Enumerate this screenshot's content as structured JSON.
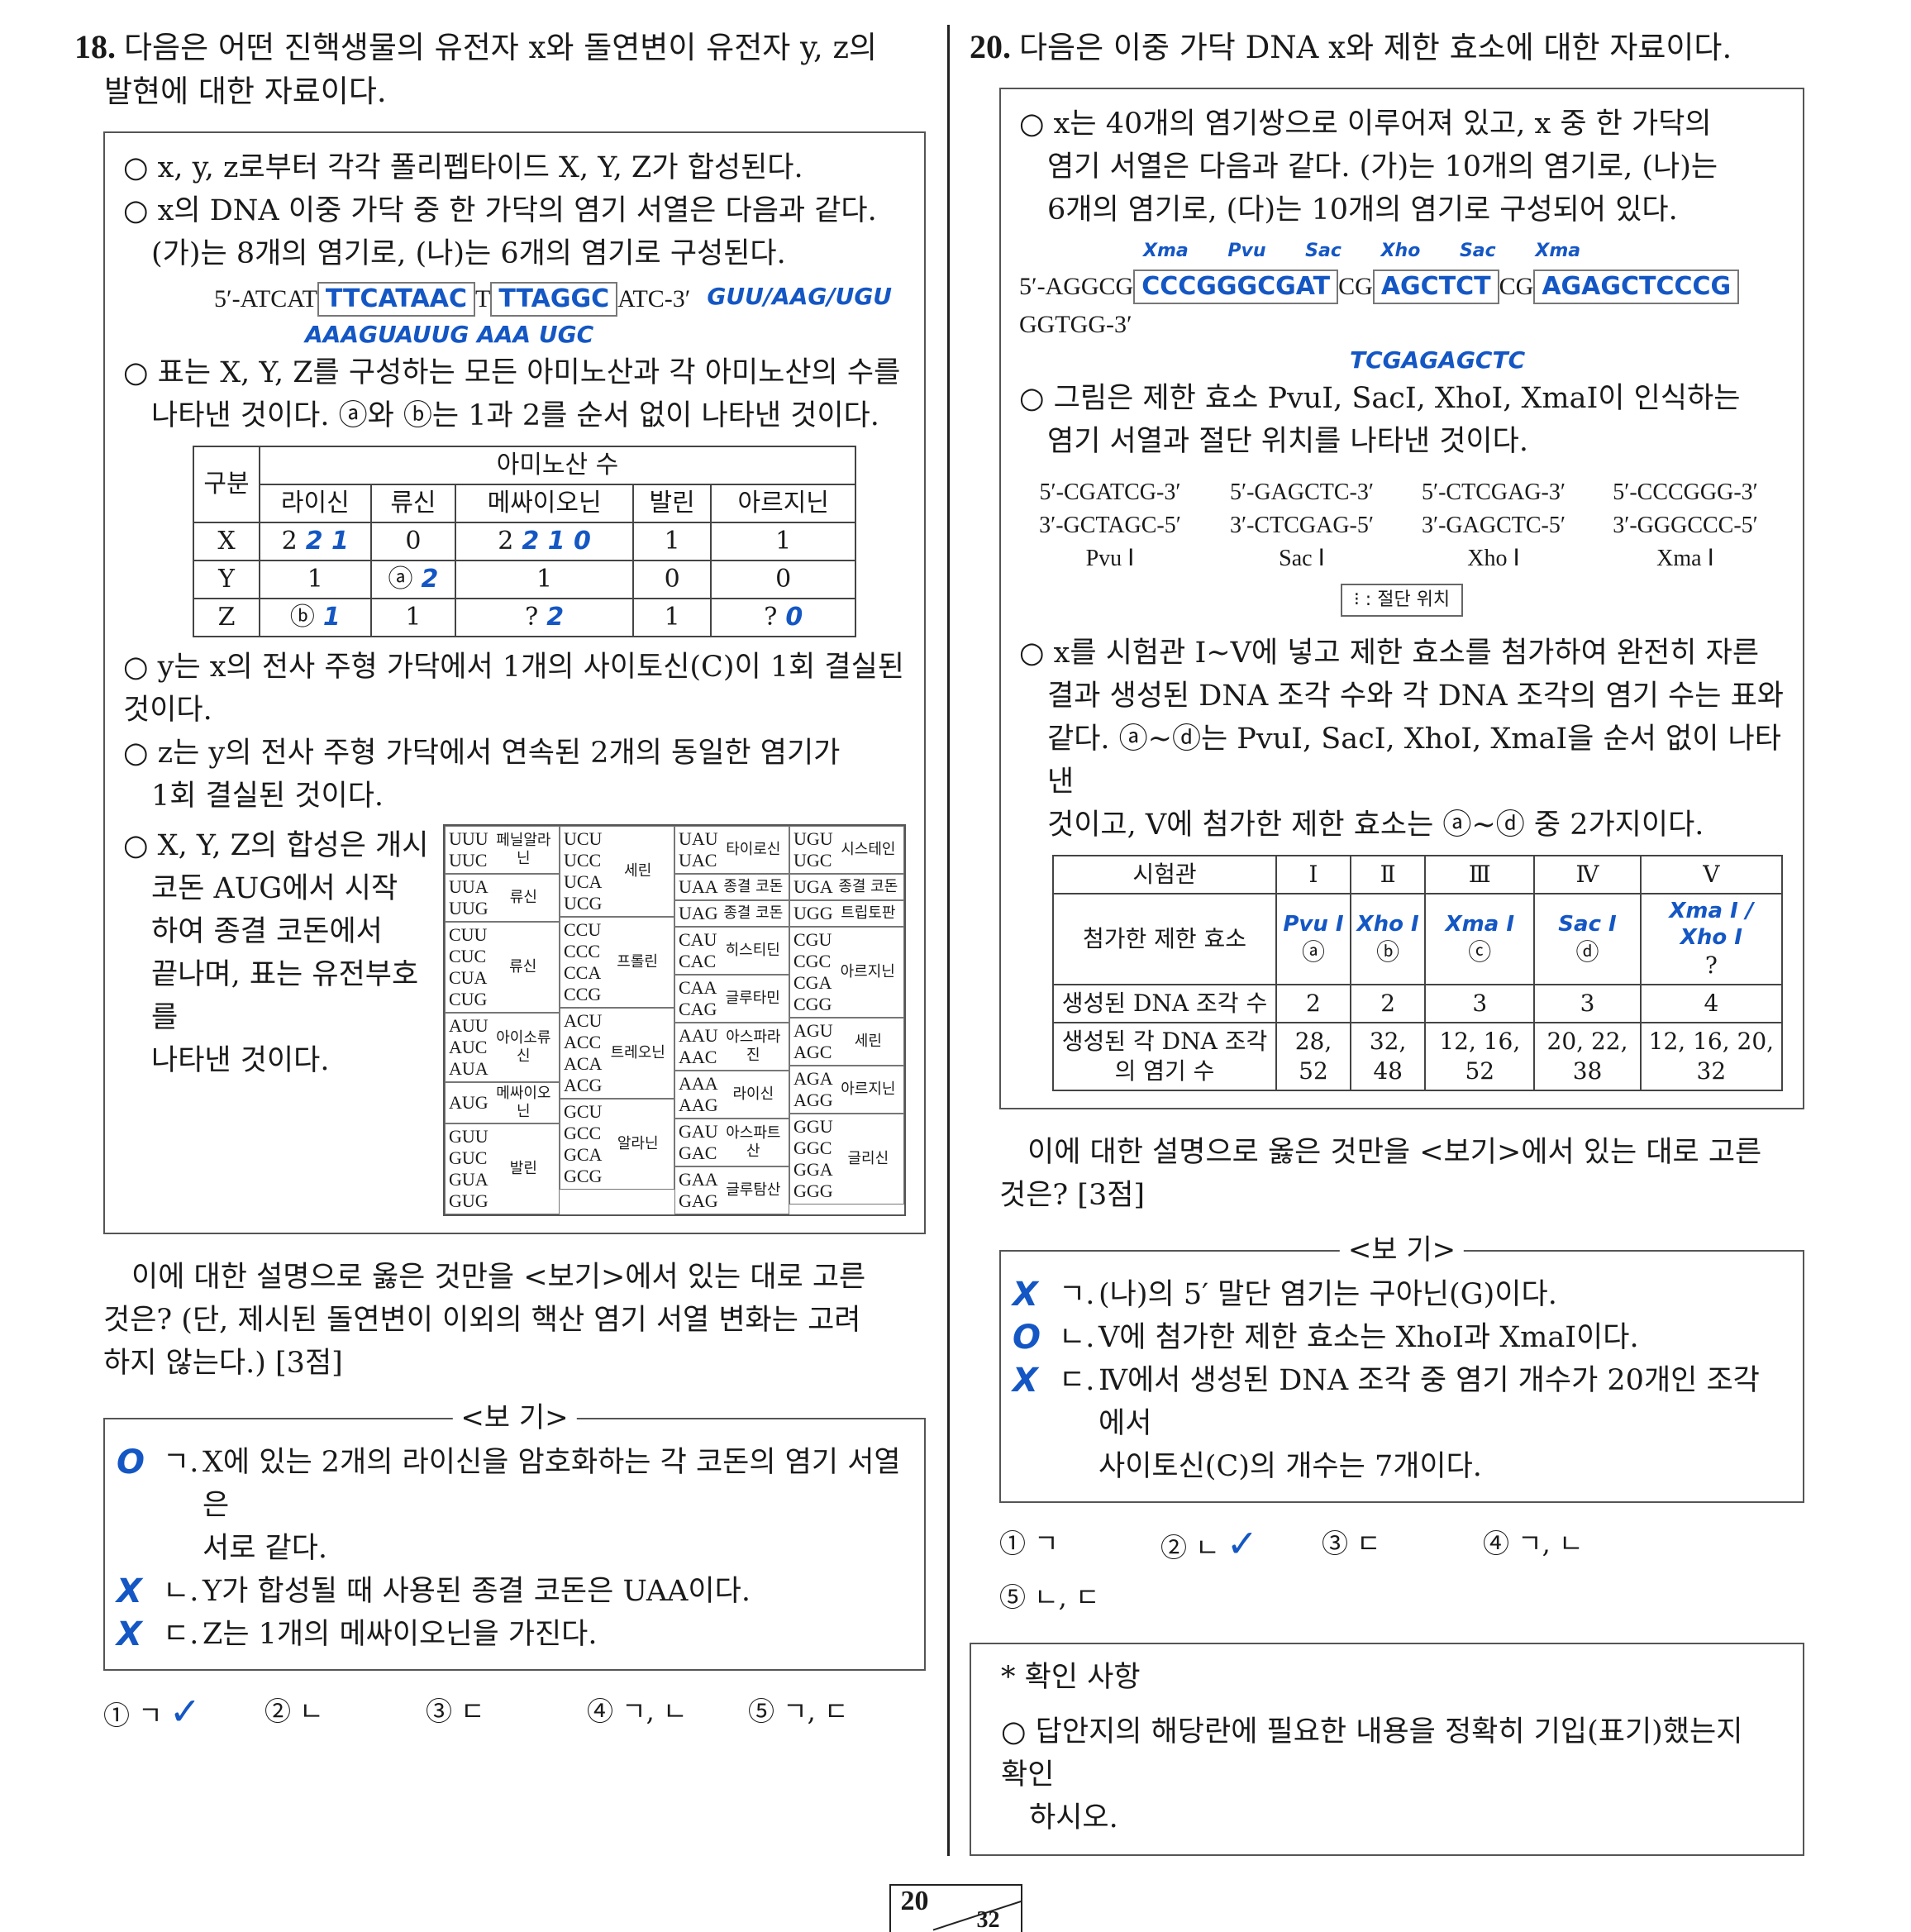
{
  "q18": {
    "number": "18.",
    "title_1": "다음은 어떤 진핵생물의 유전자 x와 돌연변이 유전자 y, z의",
    "title_2": "발현에 대한 자료이다.",
    "lines": [
      "○ x, y, z로부터 각각 폴리펩타이드 X, Y, Z가 합성된다.",
      "○ x의 DNA 이중 가닥 중 한 가닥의 염기 서열은 다음과 같다.",
      "(가)는 8개의 염기로, (나)는 6개의 염기로 구성된다."
    ],
    "sequence": {
      "prefix": "5′-ATCAT",
      "box1": "TTCATAAC",
      "mid": "T",
      "box2": "TTAGGC",
      "suffix": "ATC-3′",
      "hand_below": "AAAGUAUUG AAA UGC",
      "hand_right": "GUU/AAG/UGU"
    },
    "table_lines": [
      "○ 표는 X, Y, Z를 구성하는 모든 아미노산과 각 아미노산의 수를",
      "나타낸 것이다. ⓐ와 ⓑ는 1과 2를 순서 없이 나타낸 것이다."
    ],
    "amino_table": {
      "corner": "구분",
      "group": "아미노산 수",
      "headers": [
        "라이신",
        "류신",
        "메싸이오닌",
        "발린",
        "아르지닌"
      ],
      "rows": [
        {
          "label": "X",
          "cells": [
            "2",
            "0",
            "2",
            "1",
            "1"
          ],
          "hand": [
            "2 1",
            "",
            "2 1 0",
            "",
            ""
          ]
        },
        {
          "label": "Y",
          "cells": [
            "1",
            "ⓐ",
            "1",
            "0",
            "0"
          ],
          "hand": [
            "",
            "2",
            "",
            "",
            ""
          ]
        },
        {
          "label": "Z",
          "cells": [
            "ⓑ",
            "1",
            "?",
            "1",
            "?"
          ],
          "hand": [
            "1",
            "",
            "2",
            "",
            "0"
          ]
        }
      ]
    },
    "lines2": [
      "○ y는 x의 전사 주형 가닥에서 1개의 사이토신(C)이 1회 결실된 것이다.",
      "○ z는 y의 전사 주형 가닥에서 연속된 2개의 동일한 염기가",
      "1회 결실된 것이다."
    ],
    "synth_lines": [
      "○ X, Y, Z의 합성은 개시",
      "코돈 AUG에서 시작",
      "하여 종결 코돈에서",
      "끝나며, 표는 유전부호를",
      "나타낸 것이다."
    ],
    "codon_table": [
      [
        {
          "codons": [
            "UUU",
            "UUC"
          ],
          "aa": "페닐알라닌"
        },
        {
          "codons": [
            "UCU",
            "UCC",
            "UCA",
            "UCG"
          ],
          "aa": "세린",
          "span": 2
        },
        {
          "codons": [
            "UAU",
            "UAC"
          ],
          "aa": "타이로신"
        },
        {
          "codons": [
            "UGU",
            "UGC"
          ],
          "aa": "시스테인"
        }
      ],
      [
        {
          "codons": [
            "UUA",
            "UUG"
          ],
          "aa": "류신"
        },
        null,
        {
          "codons": [
            "UAA"
          ],
          "aa": "종결 코돈",
          "sub": [
            {
              "codons": [
                "UAG"
              ],
              "aa": "종결 코돈"
            }
          ]
        },
        {
          "codons": [
            "UGA"
          ],
          "aa": "종결 코돈",
          "sub": [
            {
              "codons": [
                "UGG"
              ],
              "aa": "트립토판"
            }
          ]
        }
      ],
      [
        {
          "codons": [
            "CUU",
            "CUC",
            "CUA",
            "CUG"
          ],
          "aa": "류신"
        },
        {
          "codons": [
            "CCU",
            "CCC",
            "CCA",
            "CCG"
          ],
          "aa": "프롤린"
        },
        {
          "codons": [
            "CAU",
            "CAC"
          ],
          "aa": "히스티딘",
          "sub": [
            {
              "codons": [
                "CAA",
                "CAG"
              ],
              "aa": "글루타민"
            }
          ]
        },
        {
          "codons": [
            "CGU",
            "CGC",
            "CGA",
            "CGG"
          ],
          "aa": "아르지닌"
        }
      ],
      [
        {
          "codons": [
            "AUU",
            "AUC",
            "AUA"
          ],
          "aa": "아이소류신",
          "sub": [
            {
              "codons": [
                "AUG"
              ],
              "aa": "메싸이오닌"
            }
          ]
        },
        {
          "codons": [
            "ACU",
            "ACC",
            "ACA",
            "ACG"
          ],
          "aa": "트레오닌"
        },
        {
          "codons": [
            "AAU",
            "AAC"
          ],
          "aa": "아스파라진",
          "sub": [
            {
              "codons": [
                "AAA",
                "AAG"
              ],
              "aa": "라이신"
            }
          ]
        },
        {
          "codons": [
            "AGU",
            "AGC"
          ],
          "aa": "세린",
          "sub": [
            {
              "codons": [
                "AGA",
                "AGG"
              ],
              "aa": "아르지닌"
            }
          ]
        }
      ],
      [
        {
          "codons": [
            "GUU",
            "GUC",
            "GUA",
            "GUG"
          ],
          "aa": "발린"
        },
        {
          "codons": [
            "GCU",
            "GCC",
            "GCA",
            "GCG"
          ],
          "aa": "알라닌"
        },
        {
          "codons": [
            "GAU",
            "GAC"
          ],
          "aa": "아스파트산",
          "sub": [
            {
              "codons": [
                "GAA",
                "GAG"
              ],
              "aa": "글루탐산"
            }
          ]
        },
        {
          "codons": [
            "GGU",
            "GGC",
            "GGA",
            "GGG"
          ],
          "aa": "글리신"
        }
      ]
    ],
    "question_lines": [
      "이에 대한 설명으로 옳은 것만을 <보기>에서 있는 대로 고른",
      "것은? (단, 제시된 돌연변이 이외의 핵산 염기 서열 변화는 고려",
      "하지 않는다.) [3점]"
    ],
    "bogi_title": "<보 기>",
    "bogi": [
      {
        "mark": "ㄱ.",
        "hand": "O",
        "lines": [
          "X에 있는 2개의 라이신을 암호화하는 각 코돈의 염기 서열은",
          "서로 같다."
        ]
      },
      {
        "mark": "ㄴ.",
        "hand": "X",
        "lines": [
          "Y가 합성될 때 사용된 종결 코돈은 UAA이다."
        ]
      },
      {
        "mark": "ㄷ.",
        "hand": "X",
        "lines": [
          "Z는 1개의 메싸이오닌을 가진다."
        ]
      }
    ],
    "choices": [
      "① ㄱ",
      "② ㄴ",
      "③ ㄷ",
      "④ ㄱ, ㄴ",
      "⑤ ㄱ, ㄷ"
    ],
    "selected_choice": 0
  },
  "q20": {
    "number": "20.",
    "title": "다음은 이중 가닥 DNA x와 제한 효소에 대한 자료이다.",
    "lines": [
      "○ x는 40개의 염기쌍으로 이루어져 있고, x 중 한 가닥의",
      "염기 서열은 다음과 같다. (가)는 10개의 염기로, (나)는",
      "6개의 염기로, (다)는 10개의 염기로 구성되어 있다."
    ],
    "sequence": {
      "prefix": "5′-AGGCG",
      "box1": "CCCGGGCGAT",
      "mid1": "CG",
      "box2": "AGCTCT",
      "mid2": "CG",
      "box3": "AGAGCTCCCG",
      "suffix": "GGTGG-3′",
      "hand_labels": "Xma  Pvu  Sac  Xho  Sac  Xma",
      "hand_below": "TCGAGAGCTC"
    },
    "enzyme_lines": [
      "○ 그림은 제한 효소 PvuⅠ, SacⅠ, XhoⅠ, XmaⅠ이 인식하는",
      "염기 서열과 절단 위치를 나타낸 것이다."
    ],
    "sites": [
      {
        "top": "5′-CGATCG-3′",
        "bottom": "3′-GCTAGC-5′",
        "name": "Pvu Ⅰ"
      },
      {
        "top": "5′-GAGCTC-3′",
        "bottom": "3′-CTCGAG-5′",
        "name": "Sac Ⅰ"
      },
      {
        "top": "5′-CTCGAG-3′",
        "bottom": "3′-GAGCTC-5′",
        "name": "Xho Ⅰ"
      },
      {
        "top": "5′-CCCGGG-3′",
        "bottom": "3′-GGGCCC-5′",
        "name": "Xma Ⅰ"
      }
    ],
    "legend": "⁝ : 절단 위치",
    "exp_lines": [
      "○ x를 시험관 Ⅰ~Ⅴ에 넣고 제한 효소를 첨가하여 완전히 자른",
      "결과 생성된 DNA 조각 수와 각 DNA 조각의 염기 수는 표와",
      "같다. ⓐ~ⓓ는 PvuⅠ, SacⅠ, XhoⅠ, XmaⅠ을 순서 없이 나타낸",
      "것이고, Ⅴ에 첨가한 제한 효소는 ⓐ~ⓓ 중 2가지이다."
    ],
    "table": {
      "headers": [
        "시험관",
        "Ⅰ",
        "Ⅱ",
        "Ⅲ",
        "Ⅳ",
        "Ⅴ"
      ],
      "rows": [
        {
          "label": "첨가한 제한 효소",
          "cells": [
            "ⓐ",
            "ⓑ",
            "ⓒ",
            "ⓓ",
            "?"
          ],
          "hand": [
            "Pvu I",
            "Xho I",
            "Xma I",
            "Sac I",
            "Xma I / Xho I"
          ]
        },
        {
          "label": "생성된 DNA 조각 수",
          "cells": [
            "2",
            "2",
            "3",
            "3",
            "4"
          ]
        },
        {
          "label": "생성된 각 DNA 조각의 염기 수",
          "cells": [
            "28, 52",
            "32, 48",
            "12, 16, 52",
            "20, 22, 38",
            "12, 16, 20, 32"
          ]
        }
      ]
    },
    "question_lines": [
      "이에 대한 설명으로 옳은 것만을 <보기>에서 있는 대로 고른",
      "것은? [3점]"
    ],
    "bogi_title": "<보 기>",
    "bogi": [
      {
        "mark": "ㄱ.",
        "hand": "X",
        "lines": [
          "(나)의 5′ 말단 염기는 구아닌(G)이다."
        ]
      },
      {
        "mark": "ㄴ.",
        "hand": "O",
        "lines": [
          "Ⅴ에 첨가한 제한 효소는 XhoⅠ과 XmaⅠ이다."
        ]
      },
      {
        "mark": "ㄷ.",
        "hand": "X",
        "lines": [
          "Ⅳ에서 생성된 DNA 조각 중 염기 개수가 20개인 조각에서",
          "사이토신(C)의 개수는 7개이다."
        ]
      }
    ],
    "choices": [
      "① ㄱ",
      "② ㄴ",
      "③ ㄷ",
      "④ ㄱ, ㄴ",
      "⑤ ㄴ, ㄷ"
    ],
    "selected_choice": 1
  },
  "notice": {
    "title": "* 확인 사항",
    "lines": [
      "○ 답안지의 해당란에 필요한 내용을 정확히 기입(표기)했는지 확인",
      "하시오."
    ]
  },
  "page": {
    "current": "20",
    "total": "32"
  },
  "colors": {
    "ink": "#1457c4",
    "text": "#1a1a1a"
  }
}
